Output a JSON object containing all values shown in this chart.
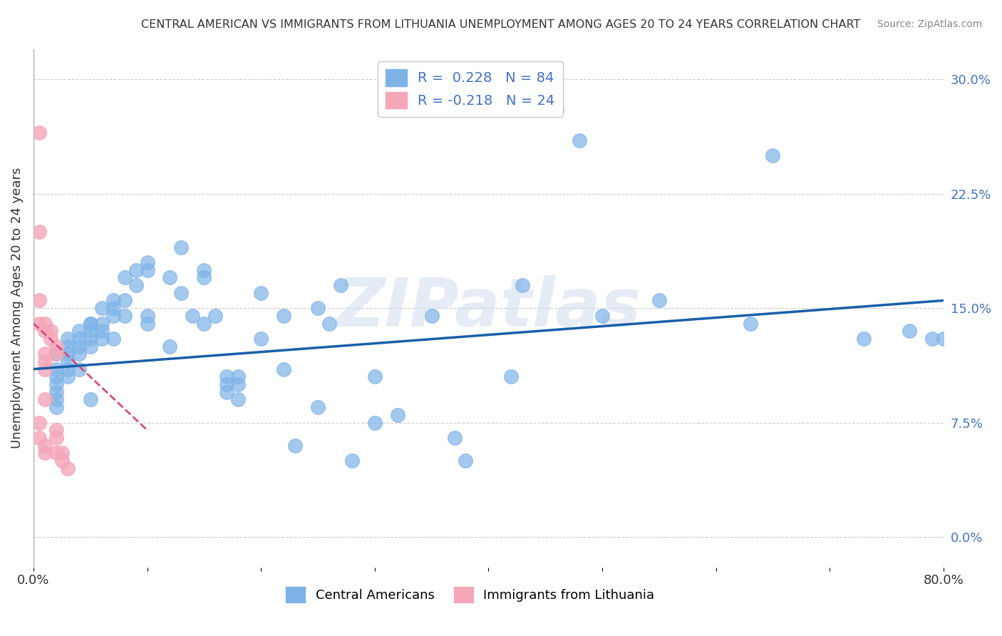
{
  "title": "CENTRAL AMERICAN VS IMMIGRANTS FROM LITHUANIA UNEMPLOYMENT AMONG AGES 20 TO 24 YEARS CORRELATION CHART",
  "source": "Source: ZipAtlas.com",
  "xlabel": "",
  "ylabel": "Unemployment Among Ages 20 to 24 years",
  "xlim": [
    0.0,
    0.8
  ],
  "ylim": [
    -0.02,
    0.32
  ],
  "xticks": [
    0.0,
    0.1,
    0.2,
    0.3,
    0.4,
    0.5,
    0.6,
    0.7,
    0.8
  ],
  "xticklabels": [
    "0.0%",
    "",
    "",
    "",
    "",
    "",
    "",
    "",
    "80.0%"
  ],
  "yticks_left": [],
  "yticks_right": [
    0.3,
    0.225,
    0.15,
    0.075,
    0.0
  ],
  "yticklabels_right": [
    "30.0%",
    "22.5%",
    "15.0%",
    "7.5%",
    "0.0%"
  ],
  "blue_color": "#7eb3e8",
  "pink_color": "#f4a7b9",
  "blue_line_color": "#1a5fa8",
  "pink_line_color": "#d44d7a",
  "blue_marker_edge": "#7eb3e8",
  "pink_marker_edge": "#f4a7b9",
  "R_blue": 0.228,
  "N_blue": 84,
  "R_pink": -0.218,
  "N_pink": 24,
  "blue_scatter_x": [
    0.02,
    0.02,
    0.02,
    0.02,
    0.02,
    0.02,
    0.02,
    0.03,
    0.03,
    0.03,
    0.03,
    0.03,
    0.03,
    0.04,
    0.04,
    0.04,
    0.04,
    0.04,
    0.05,
    0.05,
    0.05,
    0.05,
    0.05,
    0.05,
    0.06,
    0.06,
    0.06,
    0.06,
    0.07,
    0.07,
    0.07,
    0.07,
    0.08,
    0.08,
    0.08,
    0.09,
    0.09,
    0.1,
    0.1,
    0.1,
    0.1,
    0.12,
    0.12,
    0.13,
    0.13,
    0.14,
    0.15,
    0.15,
    0.15,
    0.16,
    0.17,
    0.17,
    0.17,
    0.18,
    0.18,
    0.18,
    0.2,
    0.2,
    0.22,
    0.22,
    0.23,
    0.25,
    0.25,
    0.26,
    0.27,
    0.28,
    0.3,
    0.3,
    0.32,
    0.35,
    0.37,
    0.38,
    0.42,
    0.43,
    0.46,
    0.48,
    0.5,
    0.55,
    0.63,
    0.65,
    0.73,
    0.77,
    0.79,
    0.8
  ],
  "blue_scatter_y": [
    0.12,
    0.11,
    0.1,
    0.105,
    0.095,
    0.09,
    0.085,
    0.13,
    0.125,
    0.12,
    0.115,
    0.11,
    0.105,
    0.135,
    0.13,
    0.125,
    0.12,
    0.11,
    0.14,
    0.135,
    0.13,
    0.125,
    0.14,
    0.09,
    0.15,
    0.14,
    0.135,
    0.13,
    0.155,
    0.15,
    0.145,
    0.13,
    0.17,
    0.155,
    0.145,
    0.175,
    0.165,
    0.18,
    0.175,
    0.145,
    0.14,
    0.17,
    0.125,
    0.19,
    0.16,
    0.145,
    0.175,
    0.17,
    0.14,
    0.145,
    0.105,
    0.1,
    0.095,
    0.105,
    0.1,
    0.09,
    0.16,
    0.13,
    0.145,
    0.11,
    0.06,
    0.085,
    0.15,
    0.14,
    0.165,
    0.05,
    0.105,
    0.075,
    0.08,
    0.145,
    0.065,
    0.05,
    0.105,
    0.165,
    0.28,
    0.26,
    0.145,
    0.155,
    0.14,
    0.25,
    0.13,
    0.135,
    0.13,
    0.13
  ],
  "pink_scatter_x": [
    0.005,
    0.005,
    0.005,
    0.005,
    0.005,
    0.005,
    0.01,
    0.01,
    0.01,
    0.01,
    0.01,
    0.01,
    0.01,
    0.01,
    0.015,
    0.015,
    0.02,
    0.02,
    0.02,
    0.02,
    0.02,
    0.025,
    0.025,
    0.03
  ],
  "pink_scatter_y": [
    0.265,
    0.2,
    0.155,
    0.14,
    0.075,
    0.065,
    0.14,
    0.135,
    0.12,
    0.115,
    0.11,
    0.09,
    0.06,
    0.055,
    0.135,
    0.13,
    0.125,
    0.12,
    0.07,
    0.065,
    0.055,
    0.055,
    0.05,
    0.045
  ],
  "blue_trend_x": [
    0.0,
    0.8
  ],
  "blue_trend_y": [
    0.11,
    0.155
  ],
  "pink_trend_x": [
    0.0,
    0.1
  ],
  "pink_trend_y": [
    0.14,
    0.07
  ],
  "watermark": "ZIPatlas",
  "legend_labels": [
    "Central Americans",
    "Immigrants from Lithuania"
  ],
  "background_color": "#ffffff",
  "grid_color": "#cccccc"
}
